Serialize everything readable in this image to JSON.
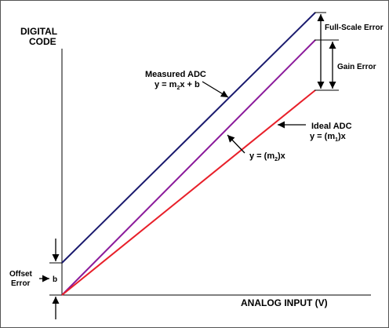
{
  "y_axis": {
    "line1": "DIGITAL",
    "line2": "CODE"
  },
  "x_axis": {
    "label": "ANALOG INPUT (V)"
  },
  "measured": {
    "title": "Measured ADC",
    "eq_prefix": "y = m",
    "eq_sub": "2",
    "eq_suffix": "x + b"
  },
  "ideal": {
    "title": "Ideal ADC",
    "eq_prefix": "y = (m",
    "eq_sub": "1",
    "eq_suffix": ")x"
  },
  "gain_line": {
    "eq_prefix": "y = (m",
    "eq_sub": "2",
    "eq_suffix": ")x"
  },
  "full_scale_error": "Full-Scale Error",
  "gain_error": "Gain Error",
  "offset": {
    "line1": "Offset",
    "line2": "Error",
    "symbol": "b"
  },
  "colors": {
    "measured": "#1a1a6e",
    "gain": "#8b1a9b",
    "ideal": "#e8202a",
    "axis": "#000000",
    "border": "#555555"
  }
}
